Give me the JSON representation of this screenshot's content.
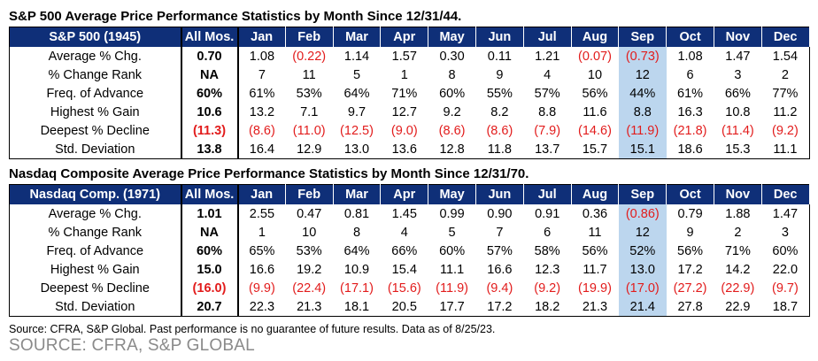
{
  "table1": {
    "title": "S&P 500 Average Price Performance Statistics by Month Since 12/31/44.",
    "header": [
      "S&P 500 (1945)",
      "All Mos.",
      "Jan",
      "Feb",
      "Mar",
      "Apr",
      "May",
      "Jun",
      "Jul",
      "Aug",
      "Sep",
      "Oct",
      "Nov",
      "Dec"
    ],
    "rows": [
      [
        "Average % Chg.",
        "0.70",
        "1.08",
        "(0.22)",
        "1.14",
        "1.57",
        "0.30",
        "0.11",
        "1.21",
        "(0.07)",
        "(0.73)",
        "1.08",
        "1.47",
        "1.54"
      ],
      [
        "% Change Rank",
        "NA",
        "7",
        "11",
        "5",
        "1",
        "8",
        "9",
        "4",
        "10",
        "12",
        "6",
        "3",
        "2"
      ],
      [
        "Freq. of Advance",
        "60%",
        "61%",
        "53%",
        "64%",
        "71%",
        "60%",
        "55%",
        "57%",
        "56%",
        "44%",
        "61%",
        "66%",
        "77%"
      ],
      [
        "Highest % Gain",
        "10.6",
        "13.2",
        "7.1",
        "9.7",
        "12.7",
        "9.2",
        "8.2",
        "8.8",
        "11.6",
        "8.8",
        "16.3",
        "10.8",
        "11.2"
      ],
      [
        "Deepest % Decline",
        "(11.3)",
        "(8.6)",
        "(11.0)",
        "(12.5)",
        "(9.0)",
        "(8.6)",
        "(8.6)",
        "(7.9)",
        "(14.6)",
        "(11.9)",
        "(21.8)",
        "(11.4)",
        "(9.2)"
      ],
      [
        "Std. Deviation",
        "13.8",
        "16.4",
        "12.9",
        "13.0",
        "13.6",
        "12.8",
        "11.8",
        "13.7",
        "15.7",
        "15.1",
        "18.6",
        "15.3",
        "11.1"
      ]
    ]
  },
  "table2": {
    "title": "Nasdaq Composite Average Price Performance Statistics by Month Since 12/31/70.",
    "header": [
      "Nasdaq Comp. (1971)",
      "All Mos.",
      "Jan",
      "Feb",
      "Mar",
      "Apr",
      "May",
      "Jun",
      "Jul",
      "Aug",
      "Sep",
      "Oct",
      "Nov",
      "Dec"
    ],
    "rows": [
      [
        "Average % Chg.",
        "1.01",
        "2.55",
        "0.47",
        "0.81",
        "1.45",
        "0.99",
        "0.90",
        "0.91",
        "0.36",
        "(0.86)",
        "0.79",
        "1.88",
        "1.47"
      ],
      [
        "% Change Rank",
        "NA",
        "1",
        "10",
        "8",
        "4",
        "5",
        "7",
        "6",
        "11",
        "12",
        "9",
        "2",
        "3"
      ],
      [
        "Freq. of Advance",
        "60%",
        "65%",
        "53%",
        "64%",
        "66%",
        "60%",
        "57%",
        "58%",
        "56%",
        "52%",
        "56%",
        "71%",
        "60%"
      ],
      [
        "Highest % Gain",
        "15.0",
        "16.6",
        "19.2",
        "10.9",
        "15.4",
        "11.1",
        "16.6",
        "12.3",
        "11.7",
        "13.0",
        "17.2",
        "14.2",
        "22.0"
      ],
      [
        "Deepest % Decline",
        "(16.0)",
        "(9.9)",
        "(22.4)",
        "(17.1)",
        "(15.6)",
        "(11.9)",
        "(9.4)",
        "(9.2)",
        "(19.9)",
        "(17.0)",
        "(27.2)",
        "(22.9)",
        "(9.7)"
      ],
      [
        "Std. Deviation",
        "20.7",
        "22.3",
        "21.3",
        "18.1",
        "20.5",
        "17.7",
        "17.2",
        "18.2",
        "21.3",
        "21.4",
        "27.8",
        "22.9",
        "18.7"
      ]
    ]
  },
  "note": "Source: CFRA, S&P Global. Past performance is no guarantee of future results. Data as of 8/25/23.",
  "source_caption": "SOURCE: CFRA, S&P GLOBAL",
  "colors": {
    "header_bg": "#0f2f78",
    "highlight_bg": "#bcd6ee",
    "negative": "#e21c1c",
    "caption": "#8a8a8a"
  },
  "highlight_column": "Sep"
}
